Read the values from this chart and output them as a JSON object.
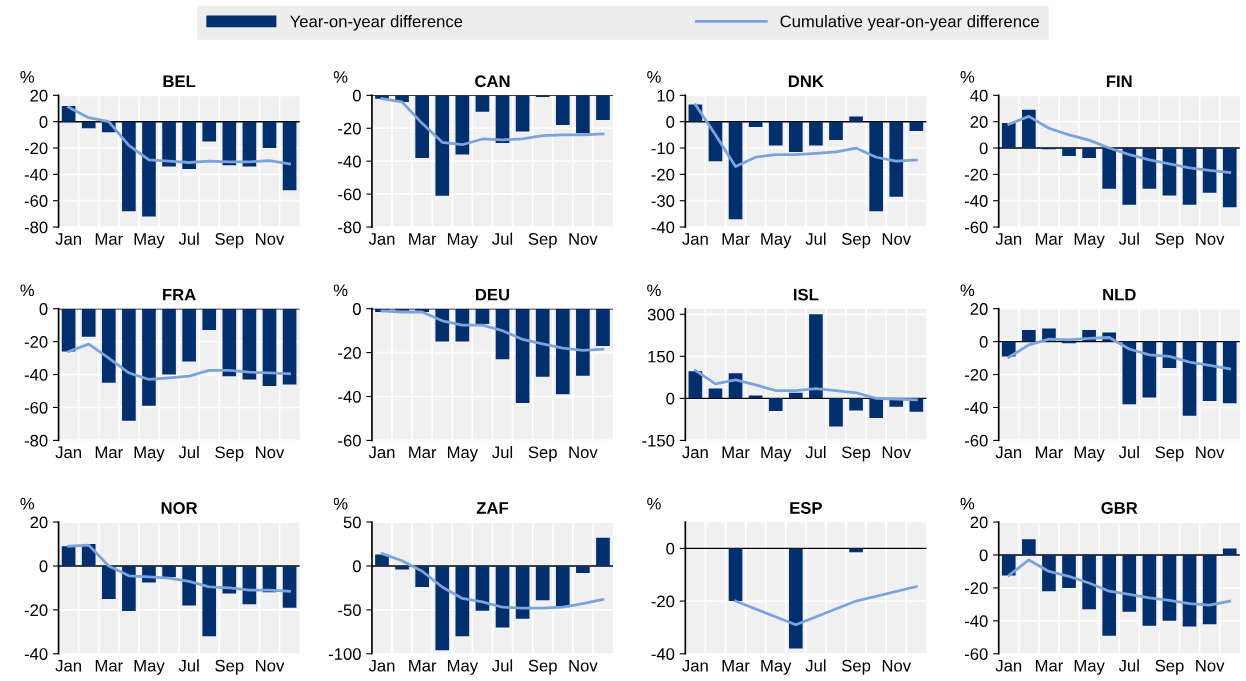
{
  "chart_data": [
    {
      "type": "bar",
      "title": "BEL",
      "ylabel": "%",
      "categories": [
        "Jan",
        null,
        "Mar",
        null,
        "May",
        null,
        "Jul",
        null,
        "Sep",
        null,
        "Nov",
        null
      ],
      "ylim": [
        -80,
        20
      ],
      "yticks": [
        -80,
        -60,
        -40,
        -20,
        0,
        20
      ],
      "grid": true,
      "legend": "top",
      "series": [
        {
          "name": "Year-on-year difference",
          "color": "#002f6c",
          "values": [
            12,
            -5,
            -8,
            -68,
            -72,
            -34,
            -36,
            -15,
            -33,
            -34,
            -20,
            -52
          ]
        },
        {
          "name": "Cumulative year-on-year difference",
          "type": "line",
          "color": "#7ba3dd",
          "values": [
            11,
            3,
            0,
            -18,
            -29,
            -30,
            -31,
            -30,
            -30.5,
            -30.5,
            -29.5,
            -32
          ]
        }
      ]
    },
    {
      "type": "bar",
      "title": "CAN",
      "ylabel": "%",
      "categories": [
        "Jan",
        null,
        "Mar",
        null,
        "May",
        null,
        "Jul",
        null,
        "Sep",
        null,
        "Nov",
        null
      ],
      "ylim": [
        -80,
        0
      ],
      "yticks": [
        -80,
        -60,
        -40,
        -20,
        0
      ],
      "grid": true,
      "series": [
        {
          "color": "#002f6c",
          "values": [
            -2,
            -4,
            -38,
            -61,
            -36,
            -10,
            -29,
            -22,
            -1,
            -18,
            -23,
            -15
          ]
        },
        {
          "type": "line",
          "color": "#7ba3dd",
          "values": [
            -2,
            -4,
            -17,
            -28.5,
            -30,
            -26.5,
            -27,
            -26.5,
            -24.5,
            -24,
            -24,
            -23.5
          ]
        }
      ]
    },
    {
      "type": "bar",
      "title": "DNK",
      "ylabel": "%",
      "categories": [
        "Jan",
        null,
        "Mar",
        null,
        "May",
        null,
        "Jul",
        null,
        "Sep",
        null,
        "Nov",
        null
      ],
      "ylim": [
        -40,
        10
      ],
      "yticks": [
        -40,
        -30,
        -20,
        -10,
        0,
        10
      ],
      "grid": true,
      "series": [
        {
          "color": "#002f6c",
          "values": [
            6.5,
            -15,
            -37,
            -2,
            -9,
            -11.5,
            -9,
            -7,
            2,
            -34,
            -28.5,
            -3.5
          ]
        },
        {
          "type": "line",
          "color": "#7ba3dd",
          "values": [
            6.5,
            -5,
            -17,
            -13.5,
            -12.5,
            -12.5,
            -12,
            -11.5,
            -10,
            -13.5,
            -15,
            -14.5
          ]
        }
      ]
    },
    {
      "type": "bar",
      "title": "FIN",
      "ylabel": "%",
      "categories": [
        "Jan",
        null,
        "Mar",
        null,
        "May",
        null,
        "Jul",
        null,
        "Sep",
        null,
        "Nov",
        null
      ],
      "ylim": [
        -60,
        40
      ],
      "yticks": [
        -60,
        -40,
        -20,
        0,
        20,
        40
      ],
      "grid": true,
      "series": [
        {
          "color": "#002f6c",
          "values": [
            19,
            29,
            -1,
            -6,
            -7.5,
            -31,
            -43,
            -31,
            -36,
            -43,
            -34,
            -45
          ]
        },
        {
          "type": "line",
          "color": "#7ba3dd",
          "values": [
            18,
            24,
            15,
            10,
            6,
            0,
            -5,
            -9,
            -12,
            -15,
            -17,
            -18.5
          ]
        }
      ]
    },
    {
      "type": "bar",
      "title": "FRA",
      "ylabel": "%",
      "categories": [
        "Jan",
        null,
        "Mar",
        null,
        "May",
        null,
        "Jul",
        null,
        "Sep",
        null,
        "Nov",
        null
      ],
      "ylim": [
        -80,
        0
      ],
      "yticks": [
        -80,
        -60,
        -40,
        -20,
        0
      ],
      "grid": true,
      "series": [
        {
          "color": "#002f6c",
          "values": [
            -26,
            -17,
            -45,
            -68,
            -59,
            -40,
            -32,
            -13,
            -41,
            -43,
            -47,
            -46
          ]
        },
        {
          "type": "line",
          "color": "#7ba3dd",
          "values": [
            -26,
            -21.5,
            -30,
            -39,
            -43,
            -42,
            -41,
            -37.5,
            -37.5,
            -38.5,
            -39,
            -39.5
          ]
        }
      ]
    },
    {
      "type": "bar",
      "title": "DEU",
      "ylabel": "%",
      "categories": [
        "Jan",
        null,
        "Mar",
        null,
        "May",
        null,
        "Jul",
        null,
        "Sep",
        null,
        "Nov",
        null
      ],
      "ylim": [
        -60,
        0
      ],
      "yticks": [
        -60,
        -40,
        -20,
        0
      ],
      "grid": true,
      "series": [
        {
          "color": "#002f6c",
          "values": [
            -1.5,
            -1.5,
            -1.5,
            -15,
            -15,
            -7,
            -23,
            -43,
            -31,
            -39,
            -30.5,
            -17
          ]
        },
        {
          "type": "line",
          "color": "#7ba3dd",
          "values": [
            -1,
            -1.5,
            -1.5,
            -5.5,
            -7.5,
            -7.5,
            -10,
            -14,
            -16,
            -18,
            -19,
            -18.5
          ]
        }
      ]
    },
    {
      "type": "bar",
      "title": "ISL",
      "ylabel": "%",
      "categories": [
        "Jan",
        null,
        "Mar",
        null,
        "May",
        null,
        "Jul",
        null,
        "Sep",
        null,
        "Nov",
        null
      ],
      "ylim": [
        -150,
        320
      ],
      "yticks": [
        -150,
        0,
        150,
        300
      ],
      "grid": true,
      "series": [
        {
          "color": "#002f6c",
          "values": [
            97,
            35,
            90,
            10,
            -45,
            20,
            300,
            -100,
            -43,
            -70,
            -30,
            -48
          ]
        },
        {
          "type": "line",
          "color": "#7ba3dd",
          "values": [
            100,
            52,
            66,
            48,
            28,
            28,
            35,
            28,
            20,
            0,
            -3,
            -5
          ]
        }
      ]
    },
    {
      "type": "bar",
      "title": "NLD",
      "ylabel": "%",
      "categories": [
        "Jan",
        null,
        "Mar",
        null,
        "May",
        null,
        "Jul",
        null,
        "Sep",
        null,
        "Nov",
        null
      ],
      "ylim": [
        -60,
        20
      ],
      "yticks": [
        -60,
        -40,
        -20,
        0,
        20
      ],
      "grid": true,
      "series": [
        {
          "color": "#002f6c",
          "values": [
            -9,
            7,
            8,
            -1,
            7,
            5.5,
            -38,
            -34,
            -16,
            -45,
            -36,
            -37.5
          ]
        },
        {
          "type": "line",
          "color": "#7ba3dd",
          "values": [
            -9.5,
            -2,
            1.5,
            1,
            2,
            2.5,
            -4.5,
            -8,
            -9,
            -12.5,
            -14.5,
            -16.5
          ]
        }
      ]
    },
    {
      "type": "bar",
      "title": "NOR",
      "ylabel": "%",
      "categories": [
        "Jan",
        null,
        "Mar",
        null,
        "May",
        null,
        "Jul",
        null,
        "Sep",
        null,
        "Nov",
        null
      ],
      "ylim": [
        -40,
        20
      ],
      "yticks": [
        -40,
        -20,
        0,
        20
      ],
      "grid": true,
      "series": [
        {
          "color": "#002f6c",
          "values": [
            9,
            10,
            -15,
            -20.5,
            -7.5,
            -5,
            -18,
            -32,
            -12.5,
            -17.5,
            -12,
            -19
          ]
        },
        {
          "type": "line",
          "color": "#7ba3dd",
          "values": [
            9,
            9.5,
            0,
            -4.5,
            -5,
            -5.5,
            -7,
            -9.5,
            -10,
            -11,
            -11,
            -11.5
          ]
        }
      ]
    },
    {
      "type": "bar",
      "title": "ZAF",
      "ylabel": "%",
      "categories": [
        "Jan",
        null,
        "Mar",
        null,
        "May",
        null,
        "Jul",
        null,
        "Sep",
        null,
        "Nov",
        null
      ],
      "ylim": [
        -100,
        50
      ],
      "yticks": [
        -100,
        -50,
        0,
        50
      ],
      "grid": true,
      "series": [
        {
          "color": "#002f6c",
          "values": [
            13,
            -4,
            -24,
            -96,
            -80,
            -51,
            -70,
            -60,
            -39,
            -47,
            -8,
            32
          ]
        },
        {
          "type": "line",
          "color": "#7ba3dd",
          "values": [
            14,
            6,
            -6,
            -24,
            -37,
            -41,
            -47,
            -48,
            -48,
            -47,
            -43,
            -38
          ]
        }
      ]
    },
    {
      "type": "bar",
      "title": "ESP",
      "ylabel": "%",
      "categories": [
        "Jan",
        null,
        "Mar",
        null,
        "May",
        null,
        "Jul",
        null,
        "Sep",
        null,
        "Nov",
        null
      ],
      "ylim": [
        -40,
        10
      ],
      "yticks": [
        -40,
        -20,
        0
      ],
      "grid": true,
      "series": [
        {
          "color": "#002f6c",
          "values": [
            null,
            null,
            -20,
            null,
            null,
            -38,
            null,
            null,
            -1.5,
            null,
            null,
            null
          ]
        },
        {
          "type": "line",
          "color": "#7ba3dd",
          "values": [
            null,
            null,
            -20,
            null,
            null,
            -29,
            null,
            null,
            -20,
            null,
            null,
            -14.5
          ]
        }
      ]
    },
    {
      "type": "bar",
      "title": "GBR",
      "ylabel": "%",
      "categories": [
        "Jan",
        null,
        "Mar",
        null,
        "May",
        null,
        "Jul",
        null,
        "Sep",
        null,
        "Nov",
        null
      ],
      "ylim": [
        -60,
        20
      ],
      "yticks": [
        -60,
        -40,
        -20,
        0,
        20
      ],
      "grid": true,
      "series": [
        {
          "color": "#002f6c",
          "values": [
            -12.5,
            9.5,
            -22,
            -20,
            -33,
            -49,
            -34.5,
            -43,
            -40,
            -43.5,
            -42,
            4
          ]
        },
        {
          "type": "line",
          "color": "#7ba3dd",
          "values": [
            -12.5,
            -3,
            -10,
            -13,
            -17,
            -22,
            -24,
            -26,
            -27.5,
            -29.5,
            -30.5,
            -28
          ]
        }
      ]
    }
  ]
}
